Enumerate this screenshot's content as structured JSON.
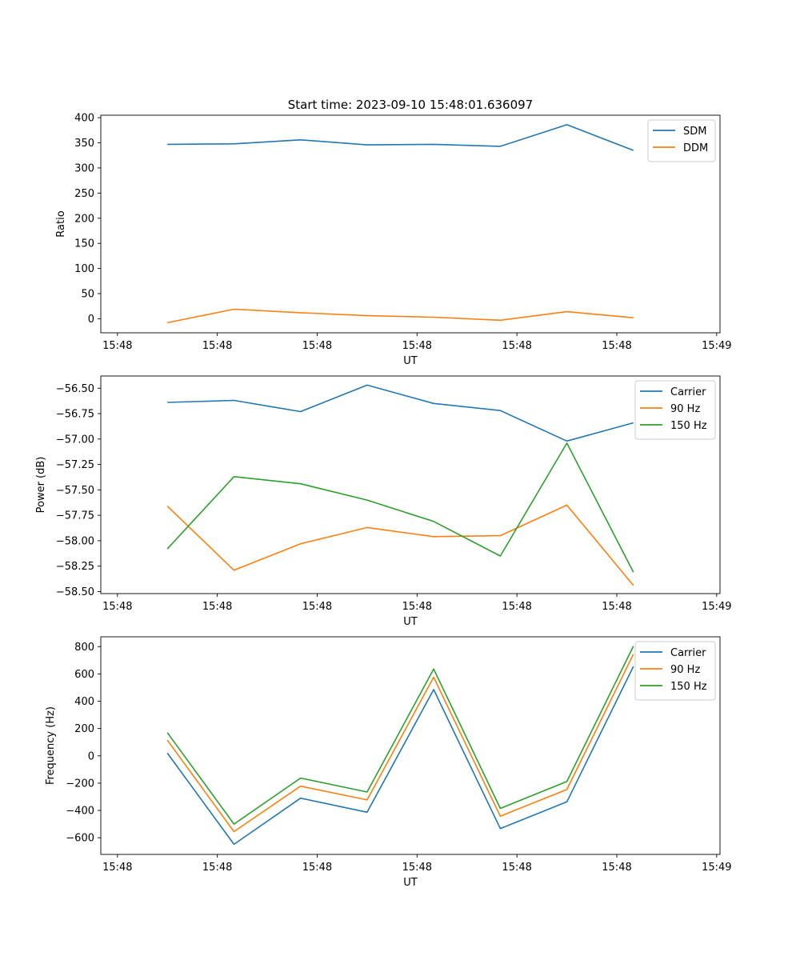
{
  "chart_data": [
    {
      "type": "line",
      "title": "Start time: 2023-09-10 15:48:01.636097",
      "xlabel": "UT",
      "ylabel": "Ratio",
      "x": [
        1,
        2,
        3,
        4,
        5,
        6,
        7,
        8
      ],
      "x_ticks": [
        0.25,
        1.75,
        3.25,
        4.75,
        6.25,
        7.75,
        9.25
      ],
      "x_tick_labels": [
        "15:48",
        "15:48",
        "15:48",
        "15:48",
        "15:48",
        "15:48",
        "15:49"
      ],
      "xlim": [
        0.0,
        9.3
      ],
      "ylim": [
        -28,
        405
      ],
      "y_ticks": [
        0,
        50,
        100,
        150,
        200,
        250,
        300,
        350,
        400
      ],
      "y_tick_labels": [
        "0",
        "50",
        "100",
        "150",
        "200",
        "250",
        "300",
        "350",
        "400"
      ],
      "legend": "top-right",
      "series": [
        {
          "name": "SDM",
          "color": "#1f77b4",
          "values": [
            347,
            348,
            356,
            346,
            347,
            343,
            386,
            335
          ]
        },
        {
          "name": "DDM",
          "color": "#ff7f0e",
          "values": [
            -8,
            19,
            12,
            6,
            3,
            -3,
            14,
            2
          ]
        }
      ]
    },
    {
      "type": "line",
      "title": "",
      "xlabel": "UT",
      "ylabel": "Power (dB)",
      "x": [
        1,
        2,
        3,
        4,
        5,
        6,
        7,
        8
      ],
      "x_ticks": [
        0.25,
        1.75,
        3.25,
        4.75,
        6.25,
        7.75,
        9.25
      ],
      "x_tick_labels": [
        "15:48",
        "15:48",
        "15:48",
        "15:48",
        "15:48",
        "15:48",
        "15:49"
      ],
      "xlim": [
        0.0,
        9.3
      ],
      "ylim": [
        -58.52,
        -56.38
      ],
      "y_ticks": [
        -58.5,
        -58.25,
        -58.0,
        -57.75,
        -57.5,
        -57.25,
        -57.0,
        -56.75,
        -56.5
      ],
      "y_tick_labels": [
        "−58.50",
        "−58.25",
        "−58.00",
        "−57.75",
        "−57.50",
        "−57.25",
        "−57.00",
        "−56.75",
        "−56.50"
      ],
      "legend": "top-right",
      "series": [
        {
          "name": "Carrier",
          "color": "#1f77b4",
          "values": [
            -56.64,
            -56.62,
            -56.73,
            -56.47,
            -56.65,
            -56.72,
            -57.02,
            -56.84
          ]
        },
        {
          "name": "90 Hz",
          "color": "#ff7f0e",
          "values": [
            -57.66,
            -58.29,
            -58.03,
            -57.87,
            -57.96,
            -57.95,
            -57.65,
            -58.44
          ]
        },
        {
          "name": "150 Hz",
          "color": "#2ca02c",
          "values": [
            -58.08,
            -57.37,
            -57.44,
            -57.6,
            -57.81,
            -58.15,
            -57.04,
            -58.31
          ]
        }
      ]
    },
    {
      "type": "line",
      "title": "",
      "xlabel": "UT",
      "ylabel": "Frequency (Hz)",
      "x": [
        1,
        2,
        3,
        4,
        5,
        6,
        7,
        8
      ],
      "x_ticks": [
        0.25,
        1.75,
        3.25,
        4.75,
        6.25,
        7.75,
        9.25
      ],
      "x_tick_labels": [
        "15:48",
        "15:48",
        "15:48",
        "15:48",
        "15:48",
        "15:48",
        "15:49"
      ],
      "xlim": [
        0.0,
        9.3
      ],
      "ylim": [
        -722,
        872
      ],
      "y_ticks": [
        -600,
        -400,
        -200,
        0,
        200,
        400,
        600,
        800
      ],
      "y_tick_labels": [
        "−600",
        "−400",
        "−200",
        "0",
        "200",
        "400",
        "600",
        "800"
      ],
      "legend": "top-right",
      "series": [
        {
          "name": "Carrier",
          "color": "#1f77b4",
          "values": [
            20,
            -648,
            -310,
            -413,
            486,
            -533,
            -337,
            655
          ]
        },
        {
          "name": "90 Hz",
          "color": "#ff7f0e",
          "values": [
            115,
            -555,
            -222,
            -323,
            576,
            -442,
            -247,
            745
          ]
        },
        {
          "name": "150 Hz",
          "color": "#2ca02c",
          "values": [
            170,
            -500,
            -163,
            -265,
            636,
            -385,
            -188,
            804
          ]
        }
      ]
    }
  ]
}
